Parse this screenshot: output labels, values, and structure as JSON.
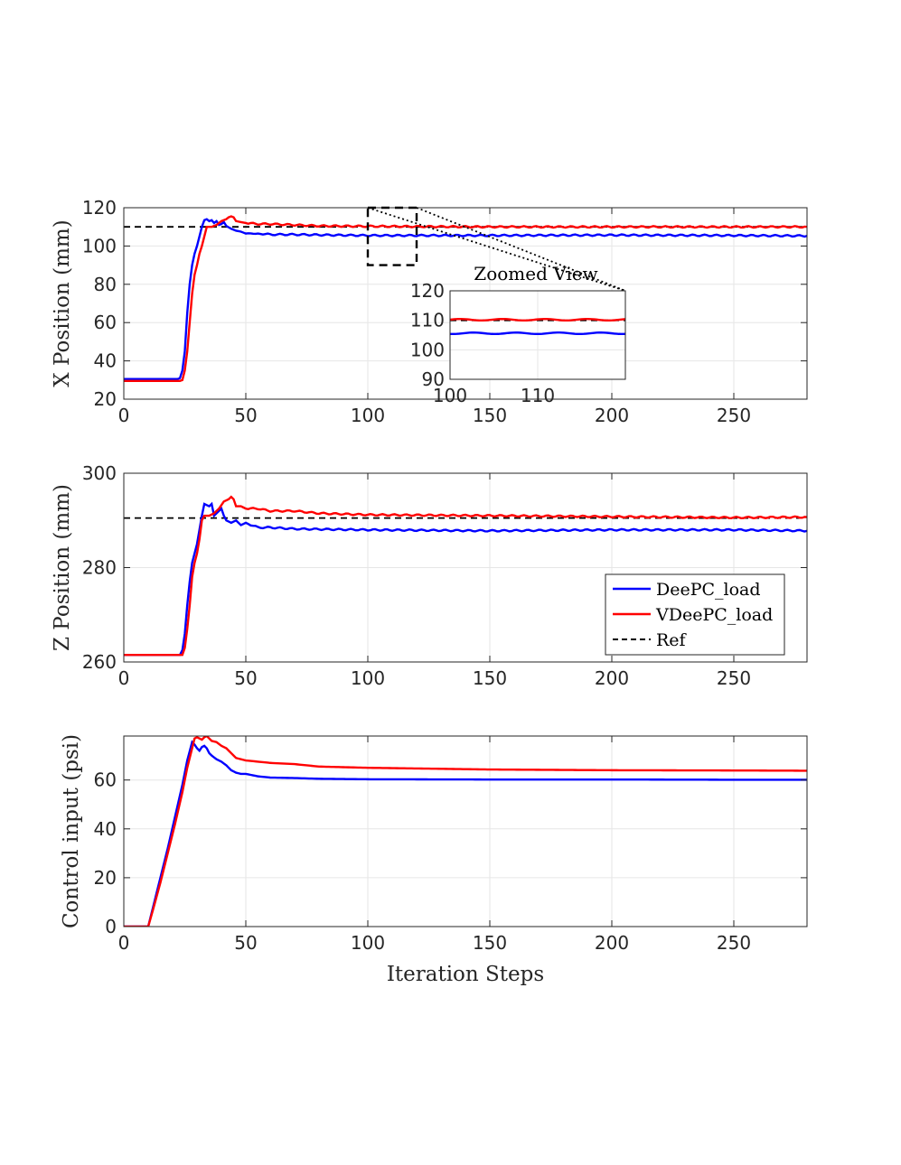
{
  "chart_data": [
    {
      "type": "line",
      "id": "x",
      "ylabel": "X Position (mm)",
      "xlabel": "",
      "xlim": [
        0,
        280
      ],
      "ylim": [
        20,
        120
      ],
      "xticks": [
        0,
        50,
        100,
        150,
        200,
        250
      ],
      "yticks": [
        20,
        40,
        60,
        80,
        100,
        120
      ],
      "grid": true,
      "ref": 110,
      "series": [
        {
          "name": "DeePC_load",
          "color": "#0000ff",
          "points": [
            [
              0,
              30.5
            ],
            [
              22,
              30.5
            ],
            [
              23,
              31
            ],
            [
              24,
              35
            ],
            [
              25,
              45
            ],
            [
              26,
              65
            ],
            [
              27,
              80
            ],
            [
              28,
              90
            ],
            [
              29,
              96
            ],
            [
              30,
              100
            ],
            [
              31,
              105
            ],
            [
              32,
              110
            ],
            [
              33,
              113.5
            ],
            [
              34,
              114
            ],
            [
              35,
              113
            ],
            [
              36,
              113.5
            ],
            [
              37,
              112
            ],
            [
              38,
              113
            ],
            [
              39,
              111
            ],
            [
              40,
              111.5
            ],
            [
              41,
              112.5
            ],
            [
              42,
              110.5
            ],
            [
              44,
              109
            ],
            [
              46,
              108
            ],
            [
              48,
              107.5
            ],
            [
              50,
              106.5
            ],
            [
              52,
              107
            ],
            [
              54,
              106
            ],
            [
              56,
              106.5
            ],
            [
              60,
              106
            ],
            [
              70,
              106
            ],
            [
              80,
              105.8
            ],
            [
              100,
              105.5
            ],
            [
              150,
              105.5
            ],
            [
              200,
              105.7
            ],
            [
              250,
              105.5
            ],
            [
              280,
              105.3
            ]
          ]
        },
        {
          "name": "VDeePC_load",
          "color": "#ff0000",
          "points": [
            [
              0,
              29.5
            ],
            [
              23,
              29.5
            ],
            [
              24,
              30
            ],
            [
              25,
              35
            ],
            [
              26,
              45
            ],
            [
              27,
              60
            ],
            [
              28,
              75
            ],
            [
              29,
              85
            ],
            [
              30,
              90
            ],
            [
              31,
              96
            ],
            [
              32,
              100
            ],
            [
              33,
              105
            ],
            [
              34,
              110
            ],
            [
              36,
              110
            ],
            [
              38,
              111
            ],
            [
              40,
              113
            ],
            [
              42,
              114
            ],
            [
              43,
              115
            ],
            [
              44,
              115.5
            ],
            [
              45,
              115
            ],
            [
              46,
              113
            ],
            [
              48,
              112.5
            ],
            [
              50,
              112
            ],
            [
              55,
              111.5
            ],
            [
              60,
              111.5
            ],
            [
              70,
              111
            ],
            [
              80,
              110.5
            ],
            [
              100,
              110.3
            ],
            [
              150,
              110
            ],
            [
              200,
              110
            ],
            [
              250,
              110
            ],
            [
              280,
              110
            ]
          ]
        }
      ]
    },
    {
      "type": "line",
      "id": "z",
      "ylabel": "Z Position (mm)",
      "xlabel": "",
      "xlim": [
        0,
        280
      ],
      "ylim": [
        260,
        300
      ],
      "xticks": [
        0,
        50,
        100,
        150,
        200,
        250
      ],
      "yticks": [
        260,
        280,
        300
      ],
      "grid": true,
      "ref": 290.5,
      "series": [
        {
          "name": "DeePC_load",
          "color": "#0000ff",
          "points": [
            [
              0,
              261.5
            ],
            [
              23,
              261.5
            ],
            [
              24,
              262.5
            ],
            [
              25,
              266
            ],
            [
              26,
              272
            ],
            [
              27,
              277
            ],
            [
              28,
              281
            ],
            [
              29,
              283
            ],
            [
              30,
              285
            ],
            [
              31,
              288
            ],
            [
              32,
              291
            ],
            [
              33,
              293.5
            ],
            [
              35,
              293
            ],
            [
              36,
              293.5
            ],
            [
              37,
              291
            ],
            [
              38,
              291.5
            ],
            [
              39,
              292
            ],
            [
              40,
              292.5
            ],
            [
              41,
              291
            ],
            [
              42,
              290
            ],
            [
              44,
              289.5
            ],
            [
              46,
              290
            ],
            [
              48,
              289
            ],
            [
              50,
              289.5
            ],
            [
              55,
              288.5
            ],
            [
              60,
              288.5
            ],
            [
              70,
              288.2
            ],
            [
              100,
              288
            ],
            [
              150,
              287.8
            ],
            [
              200,
              288
            ],
            [
              250,
              288
            ],
            [
              280,
              287.8
            ]
          ]
        },
        {
          "name": "VDeePC_load",
          "color": "#ff0000",
          "points": [
            [
              0,
              261.5
            ],
            [
              24,
              261.5
            ],
            [
              25,
              263
            ],
            [
              26,
              267
            ],
            [
              27,
              272
            ],
            [
              28,
              278
            ],
            [
              29,
              281
            ],
            [
              30,
              283
            ],
            [
              31,
              286
            ],
            [
              32,
              290
            ],
            [
              33,
              291
            ],
            [
              35,
              291
            ],
            [
              37,
              291.5
            ],
            [
              39,
              292.5
            ],
            [
              41,
              294
            ],
            [
              43,
              294.5
            ],
            [
              44,
              295
            ],
            [
              45,
              294.5
            ],
            [
              46,
              293
            ],
            [
              48,
              293
            ],
            [
              50,
              292.5
            ],
            [
              55,
              292.5
            ],
            [
              60,
              292
            ],
            [
              70,
              292
            ],
            [
              80,
              291.5
            ],
            [
              100,
              291.2
            ],
            [
              150,
              291
            ],
            [
              200,
              290.8
            ],
            [
              250,
              290.6
            ],
            [
              280,
              290.7
            ]
          ]
        }
      ]
    },
    {
      "type": "line",
      "id": "u",
      "ylabel": "Control input (psi)",
      "xlabel": "Iteration Steps",
      "xlim": [
        0,
        280
      ],
      "ylim": [
        0,
        78
      ],
      "xticks": [
        0,
        50,
        100,
        150,
        200,
        250
      ],
      "yticks": [
        0,
        20,
        40,
        60
      ],
      "grid": true,
      "series": [
        {
          "name": "DeePC_load",
          "color": "#0000ff",
          "points": [
            [
              0,
              0
            ],
            [
              10,
              0
            ],
            [
              12,
              8
            ],
            [
              15,
              20
            ],
            [
              18,
              32
            ],
            [
              21,
              45
            ],
            [
              24,
              58
            ],
            [
              26,
              68
            ],
            [
              28,
              75.5
            ],
            [
              29,
              74.5
            ],
            [
              30,
              73
            ],
            [
              31,
              72
            ],
            [
              32,
              73.5
            ],
            [
              33,
              74
            ],
            [
              34,
              73
            ],
            [
              35,
              71
            ],
            [
              36,
              70
            ],
            [
              38,
              68.5
            ],
            [
              40,
              67.5
            ],
            [
              42,
              66
            ],
            [
              44,
              64
            ],
            [
              46,
              63
            ],
            [
              48,
              62.5
            ],
            [
              50,
              62.5
            ],
            [
              55,
              61.5
            ],
            [
              60,
              61
            ],
            [
              70,
              60.8
            ],
            [
              80,
              60.5
            ],
            [
              100,
              60.3
            ],
            [
              150,
              60.2
            ],
            [
              200,
              60.2
            ],
            [
              250,
              60.1
            ],
            [
              280,
              60.1
            ]
          ]
        },
        {
          "name": "VDeePC_load",
          "color": "#ff0000",
          "points": [
            [
              0,
              0
            ],
            [
              10,
              0
            ],
            [
              12,
              7
            ],
            [
              15,
              18
            ],
            [
              18,
              30
            ],
            [
              21,
              42
            ],
            [
              24,
              55
            ],
            [
              26,
              65
            ],
            [
              28,
              73
            ],
            [
              29,
              77
            ],
            [
              30,
              77.5
            ],
            [
              31,
              77
            ],
            [
              32,
              76.5
            ],
            [
              33,
              77.5
            ],
            [
              34,
              78
            ],
            [
              35,
              77
            ],
            [
              36,
              76
            ],
            [
              38,
              75.5
            ],
            [
              40,
              74
            ],
            [
              42,
              73
            ],
            [
              44,
              71
            ],
            [
              46,
              69
            ],
            [
              48,
              68.5
            ],
            [
              50,
              68
            ],
            [
              55,
              67.5
            ],
            [
              60,
              67
            ],
            [
              70,
              66.5
            ],
            [
              80,
              65.5
            ],
            [
              100,
              65
            ],
            [
              150,
              64.3
            ],
            [
              200,
              64
            ],
            [
              250,
              63.9
            ],
            [
              280,
              63.8
            ]
          ]
        }
      ]
    }
  ],
  "zoom": {
    "title": "Zoomed View",
    "xlim": [
      100,
      120
    ],
    "ylim": [
      90,
      120
    ],
    "xticks": [
      100,
      110
    ],
    "yticks": [
      90,
      100,
      110,
      120
    ]
  },
  "legend": {
    "placement": "lower-right of Z Position panel",
    "entries": [
      {
        "label": "DeePC_load",
        "color": "#0000ff",
        "dash": false
      },
      {
        "label": "VDeePC_load",
        "color": "#ff0000",
        "dash": false
      },
      {
        "label": "Ref",
        "color": "#000000",
        "dash": true
      }
    ]
  }
}
